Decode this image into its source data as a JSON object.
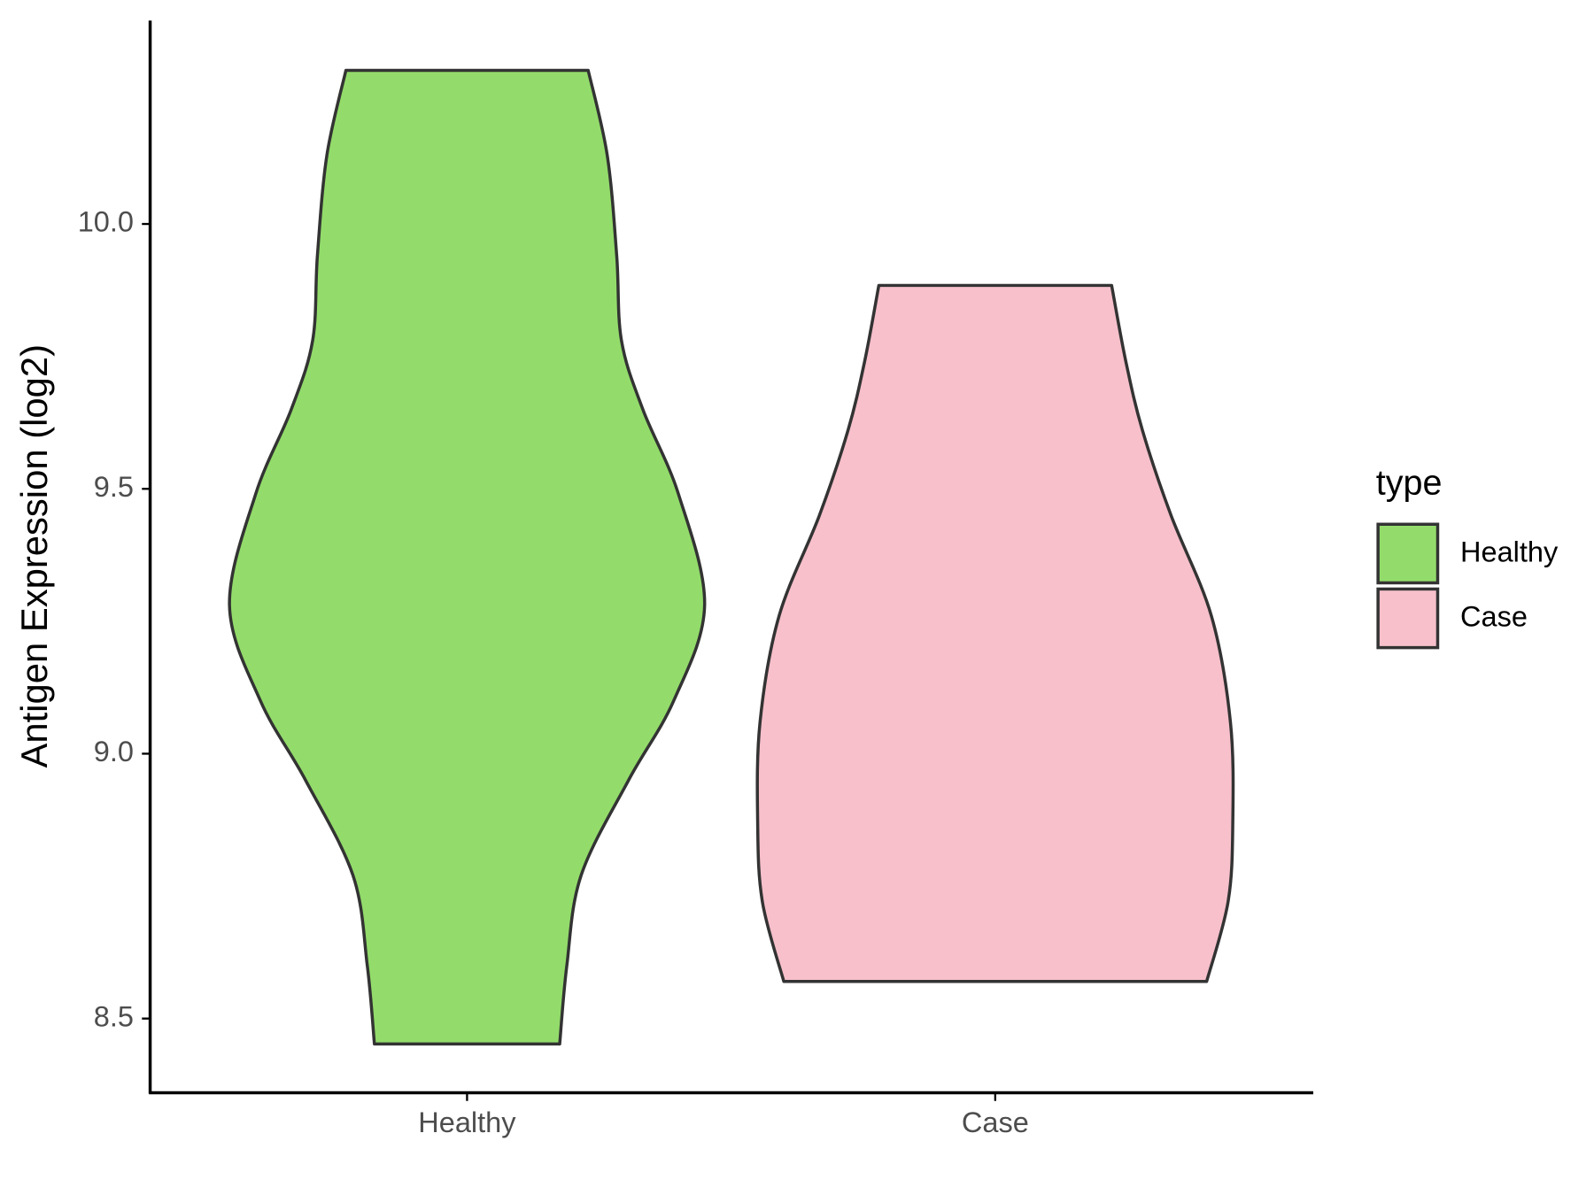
{
  "chart_data": {
    "type": "violin",
    "ylabel": "Antigen Expression (log2)",
    "legend_title": "type",
    "categories": [
      "Healthy",
      "Case"
    ],
    "series": [
      {
        "name": "Healthy",
        "color": "#93dc6b",
        "y": [
          10.29,
          10.13,
          9.94,
          9.78,
          9.65,
          9.49,
          9.28,
          9.1,
          8.95,
          8.77,
          8.6,
          8.452
        ],
        "density": [
          0.51,
          0.59,
          0.63,
          0.65,
          0.74,
          0.89,
          1.0,
          0.87,
          0.68,
          0.48,
          0.42,
          0.39
        ]
      },
      {
        "name": "Case",
        "color": "#f7c0cb",
        "y": [
          9.884,
          9.74,
          9.61,
          9.45,
          9.26,
          9.06,
          8.87,
          8.72,
          8.57
        ],
        "density": [
          0.49,
          0.55,
          0.62,
          0.74,
          0.91,
          0.99,
          1.0,
          0.98,
          0.89
        ]
      }
    ],
    "ylim": [
      8.36,
      10.384
    ],
    "yticks": [
      8.5,
      {
        "value": 9.0,
        "label": "9.0"
      },
      9.5,
      {
        "value": 10.0,
        "label": "10.0"
      }
    ]
  }
}
